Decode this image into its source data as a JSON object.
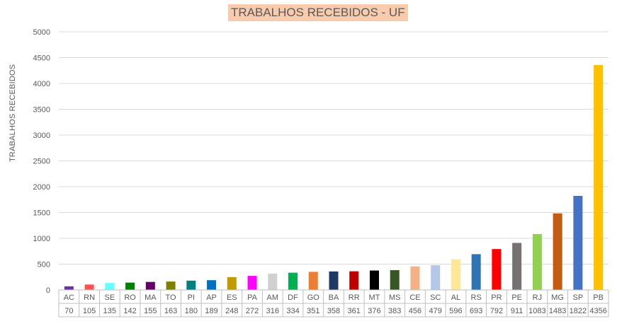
{
  "chart_data": {
    "type": "bar",
    "title": "TRABALHOS RECEBIDOS - UF",
    "ylabel": "TRABALHOS  RECEBIDOS",
    "xlabel": "",
    "ylim": [
      0,
      5000
    ],
    "yticks": [
      0,
      500,
      1000,
      1500,
      2000,
      2500,
      3000,
      3500,
      4000,
      4500,
      5000
    ],
    "grid": true,
    "data_table": true,
    "categories": [
      "AC",
      "RN",
      "SE",
      "RO",
      "MA",
      "TO",
      "PI",
      "AP",
      "ES",
      "PA",
      "AM",
      "DF",
      "GO",
      "BA",
      "RR",
      "MT",
      "MS",
      "CE",
      "SC",
      "AL",
      "RS",
      "PR",
      "PE",
      "RJ",
      "MG",
      "SP",
      "PB"
    ],
    "values": [
      70,
      105,
      135,
      142,
      155,
      163,
      180,
      189,
      248,
      272,
      316,
      334,
      351,
      358,
      361,
      376,
      383,
      456,
      479,
      596,
      693,
      792,
      911,
      1083,
      1483,
      1822,
      4356
    ],
    "colors": [
      "#7030a0",
      "#ff5050",
      "#66ffff",
      "#008000",
      "#660066",
      "#808000",
      "#008080",
      "#0070c0",
      "#c09a00",
      "#ff00ff",
      "#d0d0d0",
      "#00b050",
      "#ed7d31",
      "#203864",
      "#c00000",
      "#000000",
      "#375623",
      "#f4b183",
      "#b4c7e7",
      "#ffe699",
      "#2e75b6",
      "#ff0000",
      "#767171",
      "#92d050",
      "#c55a11",
      "#4472c4",
      "#ffc000"
    ]
  }
}
